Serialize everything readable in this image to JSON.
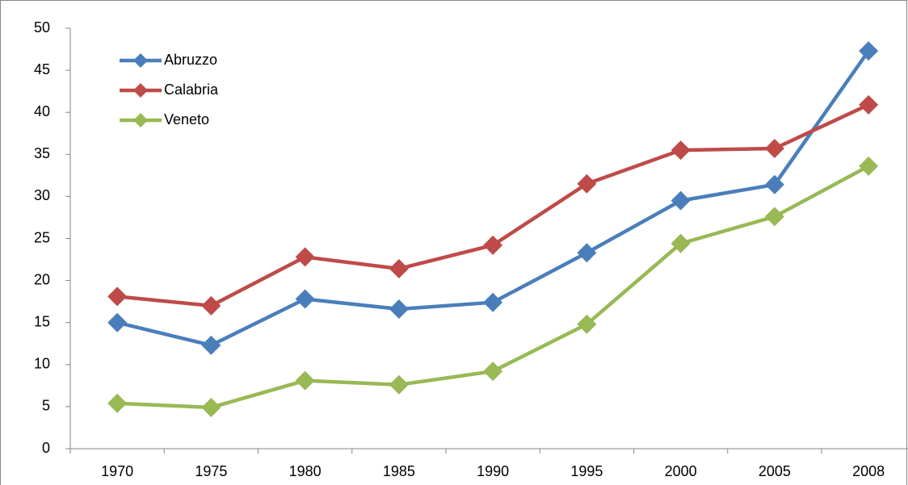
{
  "chart_data": {
    "type": "line",
    "categories": [
      "1970",
      "1975",
      "1980",
      "1985",
      "1990",
      "1995",
      "2000",
      "2005",
      "2008"
    ],
    "series": [
      {
        "name": "Abruzzo",
        "color": "#4a7ebb",
        "values": [
          15.0,
          12.3,
          17.8,
          16.6,
          17.4,
          23.3,
          29.5,
          31.4,
          47.3
        ]
      },
      {
        "name": "Calabria",
        "color": "#be4b48",
        "values": [
          18.1,
          17.0,
          22.8,
          21.4,
          24.2,
          31.5,
          35.5,
          35.7,
          40.9
        ]
      },
      {
        "name": "Veneto",
        "color": "#98b954",
        "values": [
          5.4,
          4.9,
          8.1,
          7.6,
          9.2,
          14.8,
          24.4,
          27.6,
          33.6
        ]
      }
    ],
    "ylim": [
      0,
      50
    ],
    "yticks": [
      0,
      5,
      10,
      15,
      20,
      25,
      30,
      35,
      40,
      45,
      50
    ],
    "grid": false,
    "legend": "upper left"
  }
}
